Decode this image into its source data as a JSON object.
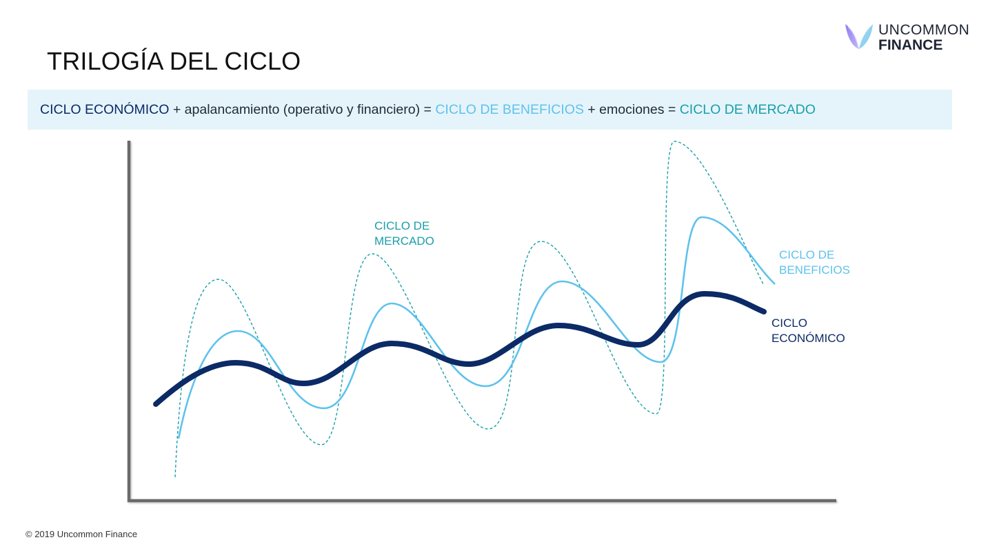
{
  "brand": {
    "line1": "UNCOMMON",
    "line2": "FINANCE",
    "icon": "butterfly-logo-icon"
  },
  "title": "TRILOGÍA DEL CICLO",
  "formula": {
    "p1": "CICLO ECONÓMICO",
    "p2": " + apalancamiento (operativo y financiero) = ",
    "p3": "CICLO DE BENEFICIOS",
    "p4": " + emociones = ",
    "p5": "CICLO DE MERCADO"
  },
  "colors": {
    "economico": "#0b2a66",
    "beneficios": "#5ec2ec",
    "mercado": "#1a9fa8",
    "axis": "#666666",
    "banner": "#e5f4fb"
  },
  "labels": {
    "mercado_1": "CICLO DE",
    "mercado_2": "MERCADO",
    "beneficios_1": "CICLO DE",
    "beneficios_2": "BENEFICIOS",
    "economico_1": "CICLO",
    "economico_2": "ECONÓMICO"
  },
  "footer": "© 2019 Uncommon Finance"
}
